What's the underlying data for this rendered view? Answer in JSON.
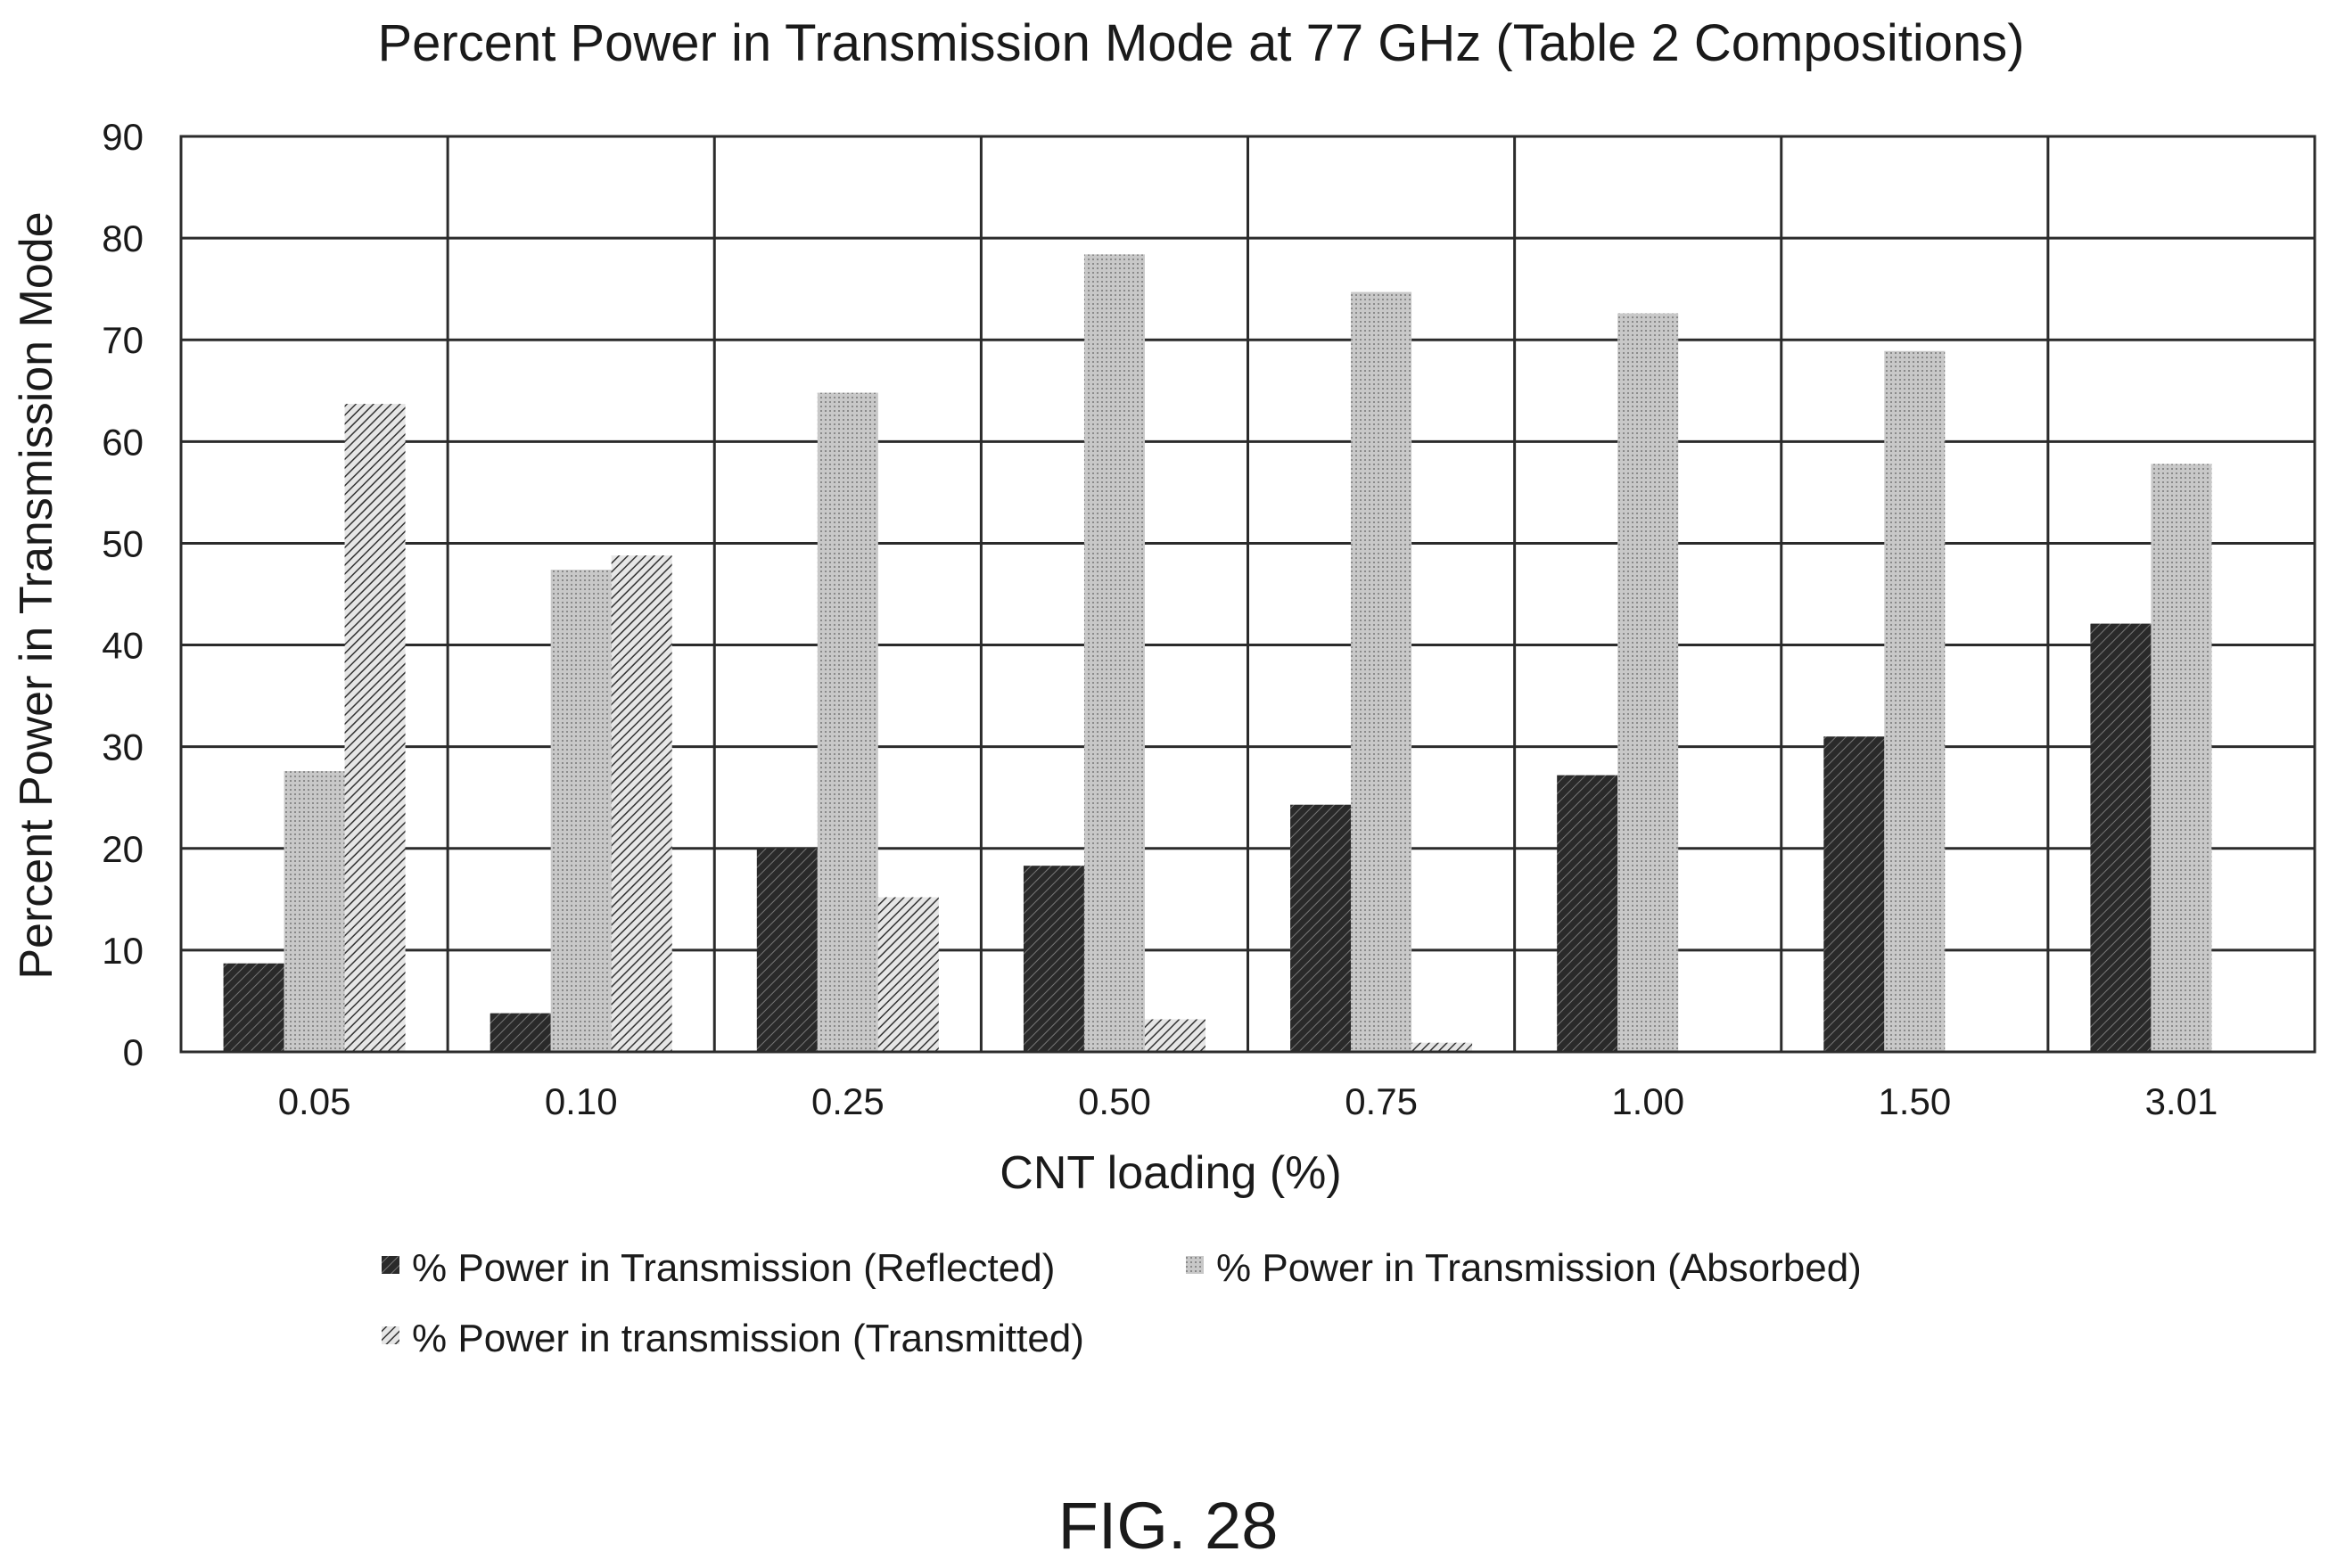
{
  "chart_data": {
    "type": "bar",
    "title": "Percent Power in Transmission Mode at 77 GHz (Table 2 Compositions)",
    "xlabel": "CNT loading (%)",
    "ylabel": "Percent Power in Transmission Mode",
    "ylim": [
      0,
      90
    ],
    "yticks": [
      0,
      10,
      20,
      30,
      40,
      50,
      60,
      70,
      80,
      90
    ],
    "grid": true,
    "legend_position": "bottom",
    "categories": [
      "0.05",
      "0.10",
      "0.25",
      "0.50",
      "0.75",
      "1.00",
      "1.50",
      "3.01"
    ],
    "series": [
      {
        "name": "% Power in Transmission (Reflected)",
        "values": [
          8.7,
          3.8,
          20.0,
          18.3,
          24.3,
          27.2,
          31.0,
          42.1
        ],
        "color": "#3a3a3a"
      },
      {
        "name": "% Power in Transmission (Absorbed)",
        "values": [
          27.6,
          47.4,
          64.8,
          78.4,
          74.7,
          72.6,
          68.9,
          57.8
        ],
        "color": "#bdbdbd"
      },
      {
        "name": "% Power in transmission (Transmitted)",
        "values": [
          63.7,
          48.8,
          15.2,
          3.2,
          0.9,
          0,
          0,
          0
        ],
        "color": "#6e6e6e"
      }
    ]
  },
  "figure_label": "FIG. 28"
}
